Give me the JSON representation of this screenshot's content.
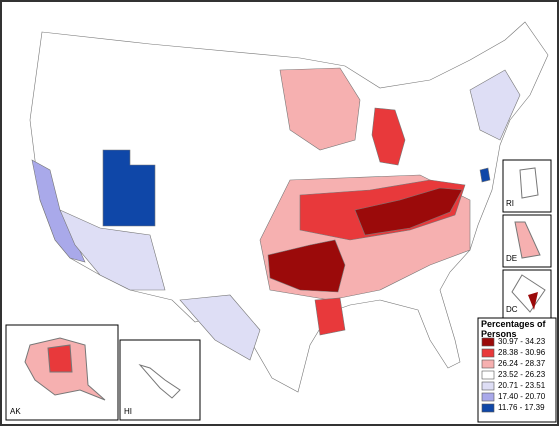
{
  "legend": {
    "title": "Percentages of Persons",
    "items": [
      {
        "label": "30.97 - 34.23",
        "color": "#9b0a0a"
      },
      {
        "label": "28.38 - 30.96",
        "color": "#e8393b"
      },
      {
        "label": "26.24 - 28.37",
        "color": "#f6b0b0"
      },
      {
        "label": "23.52 - 26.23",
        "color": "#ffffff"
      },
      {
        "label": "20.71 - 23.51",
        "color": "#dedef5"
      },
      {
        "label": "17.40 - 20.70",
        "color": "#a9a9ea"
      },
      {
        "label": "11.76 - 17.39",
        "color": "#0f47a8"
      }
    ]
  },
  "insets": {
    "ri": "RI",
    "de": "DE",
    "dc": "DC",
    "ak": "AK",
    "hi": "HI"
  }
}
